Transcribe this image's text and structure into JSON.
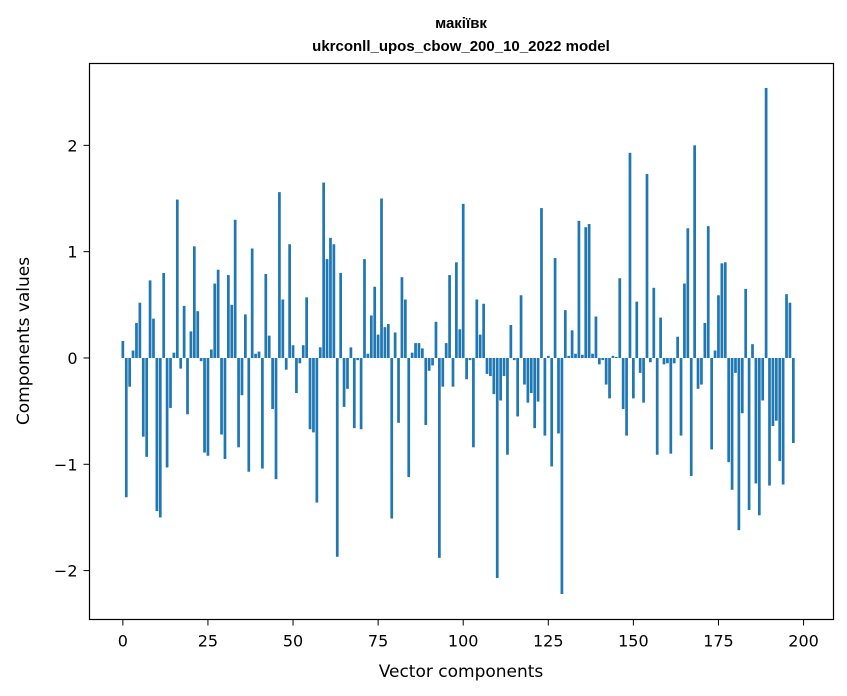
{
  "chart_data": {
    "type": "bar",
    "title": "макіївк",
    "subtitle": "ukrconll_upos_cbow_200_10_2022 model",
    "xlabel": "Vector components",
    "ylabel": "Components values",
    "xlim": [
      -9.8,
      208.8
    ],
    "ylim": [
      -2.46,
      2.77
    ],
    "x_ticks": [
      0,
      25,
      50,
      75,
      100,
      125,
      150,
      175,
      200
    ],
    "y_ticks": [
      -2,
      -1,
      0,
      1,
      2
    ],
    "y_tick_labels": [
      "−2",
      "−1",
      "0",
      "1",
      "2"
    ],
    "bar_color": "#1f77b4",
    "grid": false,
    "values": [
      0.16,
      -1.31,
      -0.27,
      0.07,
      0.33,
      0.52,
      -0.74,
      -0.93,
      0.73,
      0.37,
      -1.44,
      -1.5,
      0.8,
      -1.03,
      -0.47,
      0.05,
      1.49,
      -0.1,
      0.49,
      -0.53,
      0.25,
      1.05,
      0.44,
      -0.03,
      -0.89,
      -0.92,
      0.08,
      0.7,
      0.83,
      -0.72,
      -0.95,
      0.78,
      0.5,
      1.3,
      -0.84,
      -0.35,
      0.41,
      -1.07,
      1.03,
      0.04,
      0.06,
      -1.04,
      0.79,
      0.21,
      -0.48,
      -1.14,
      1.56,
      0.55,
      -0.11,
      1.07,
      0.12,
      -0.33,
      -0.05,
      0.12,
      0.57,
      -0.67,
      -0.7,
      -1.36,
      0.1,
      1.65,
      0.93,
      1.13,
      1.07,
      -1.87,
      0.8,
      -0.46,
      -0.29,
      0.1,
      -0.66,
      -0.02,
      -0.67,
      0.93,
      0.04,
      0.4,
      0.67,
      0.22,
      1.5,
      0.29,
      0.32,
      -1.51,
      0.24,
      -0.61,
      0.76,
      0.55,
      -1.12,
      0.05,
      0.14,
      0.14,
      0.09,
      -0.63,
      -0.12,
      -0.07,
      0.34,
      -1.88,
      -0.27,
      0.14,
      0.78,
      -0.27,
      0.9,
      0.27,
      1.45,
      -0.2,
      -0.02,
      -0.84,
      0.55,
      0.22,
      0.51,
      -0.15,
      -0.17,
      -0.34,
      -2.07,
      -0.4,
      -0.17,
      -0.91,
      0.31,
      -0.02,
      -0.55,
      0.59,
      -0.25,
      -0.42,
      -0.33,
      -0.66,
      -0.41,
      1.41,
      -0.73,
      0.02,
      -1.02,
      0.94,
      -0.71,
      -2.22,
      0.45,
      0.02,
      0.26,
      0.04,
      1.29,
      0.03,
      1.23,
      1.26,
      0.04,
      0.39,
      -0.06,
      -0.02,
      -0.25,
      -0.38,
      0.02,
      0.01,
      0.75,
      -0.48,
      -0.73,
      1.93,
      -0.38,
      0.53,
      -0.14,
      -0.42,
      1.73,
      -0.04,
      0.66,
      -0.91,
      0.38,
      -0.06,
      -0.05,
      -0.9,
      -0.05,
      0.2,
      -0.73,
      0.7,
      1.22,
      -1.11,
      2.0,
      -0.29,
      -0.25,
      0.33,
      1.24,
      -0.86,
      0.07,
      0.59,
      0.89,
      0.9,
      -0.98,
      -1.24,
      -0.14,
      -1.62,
      -0.52,
      0.65,
      -1.43,
      0.13,
      -1.18,
      -1.48,
      -0.4,
      2.54,
      -1.2,
      -0.64,
      -0.59,
      -0.97,
      -1.19,
      0.6,
      0.52,
      -0.8
    ]
  }
}
